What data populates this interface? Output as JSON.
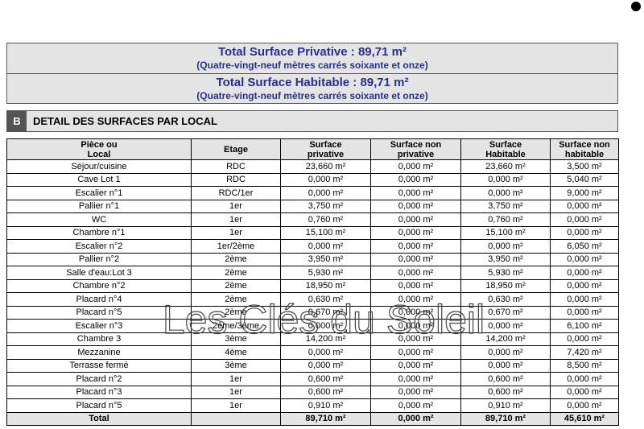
{
  "summary": {
    "privative": {
      "title": "Total Surface Privative : 89,71 m²",
      "words": "(Quatre-vingt-neuf mètres carrés soixante et onze)"
    },
    "habitable": {
      "title": "Total Surface Habitable : 89,71 m²",
      "words": "(Quatre-vingt-neuf mètres carrés soixante et onze)"
    }
  },
  "section": {
    "letter": "B",
    "title": "DETAIL DES SURFACES PAR LOCAL"
  },
  "table": {
    "header": [
      "Pièce ou Local",
      "Etage",
      "Surface privative",
      "Surface non privative",
      "Surface Habitable",
      "Surface non habitable"
    ],
    "rows": [
      [
        "Séjour/cuisine",
        "RDC",
        "23,660 m²",
        "0,000 m²",
        "23,660 m²",
        "3,500 m²"
      ],
      [
        "Cave Lot 1",
        "RDC",
        "0,000 m²",
        "0,000 m²",
        "0,000 m²",
        "5,040 m²"
      ],
      [
        "Escalier n°1",
        "RDC/1er",
        "0,000 m²",
        "0,000 m²",
        "0,000 m²",
        "9,000 m²"
      ],
      [
        "Pallier n°1",
        "1er",
        "3,750 m²",
        "0,000 m²",
        "3,750 m²",
        "0,000 m²"
      ],
      [
        "WC",
        "1er",
        "0,760 m²",
        "0,000 m²",
        "0,760 m²",
        "0,000 m²"
      ],
      [
        "Chambre n°1",
        "1er",
        "15,100 m²",
        "0,000 m²",
        "15,100 m²",
        "0,000 m²"
      ],
      [
        "Escalier n°2",
        "1er/2ème",
        "0,000 m²",
        "0,000 m²",
        "0,000 m²",
        "6,050 m²"
      ],
      [
        "Pallier  n°2",
        "2ème",
        "3,950 m²",
        "0,000 m²",
        "3,950 m²",
        "0,000 m²"
      ],
      [
        "Salle d'eau:Lot 3",
        "2ème",
        "5,930 m²",
        "0,000 m²",
        "5,930 m²",
        "0,000 m²"
      ],
      [
        "Chambre n°2",
        "2ème",
        "18,950 m²",
        "0,000 m²",
        "18,950 m²",
        "0,000 m²"
      ],
      [
        "Placard n°4",
        "2ème",
        "0,630 m²",
        "0,000 m²",
        "0,630 m²",
        "0,000 m²"
      ],
      [
        "Placard n°5",
        "2ème",
        "0,670 m²",
        "0,000 m²",
        "0,670 m²",
        "0,000 m²"
      ],
      [
        "Escalier n°3",
        "2ème/3ème",
        "0,000 m²",
        "0,000 m²",
        "0,000 m²",
        "6,100 m²"
      ],
      [
        "Chambre 3",
        "3ème",
        "14,200 m²",
        "0,000 m²",
        "14,200 m²",
        "0,000 m²"
      ],
      [
        "Mezzanine",
        "4ème",
        "0,000 m²",
        "0,000 m²",
        "0,000 m²",
        "7,420 m²"
      ],
      [
        "Terrasse fermé",
        "3ème",
        "0,000 m²",
        "0,000 m²",
        "0,000 m²",
        "8,500 m²"
      ],
      [
        "Placard n°2",
        "1er",
        "0,600 m²",
        "0,000 m²",
        "0,600 m²",
        "0,000 m²"
      ],
      [
        "Placard n°3",
        "1er",
        "0,600 m²",
        "0,000 m²",
        "0,600 m²",
        "0,000 m²"
      ],
      [
        "Placard n°5",
        "1er",
        "0,910 m²",
        "0,000 m²",
        "0,910 m²",
        "0,000 m²"
      ]
    ],
    "total": [
      "Total",
      null,
      "89,710 m²",
      "0,000 m²",
      "89,710 m²",
      "45,610 m²"
    ]
  },
  "watermark": "Les Clés du Soleil"
}
